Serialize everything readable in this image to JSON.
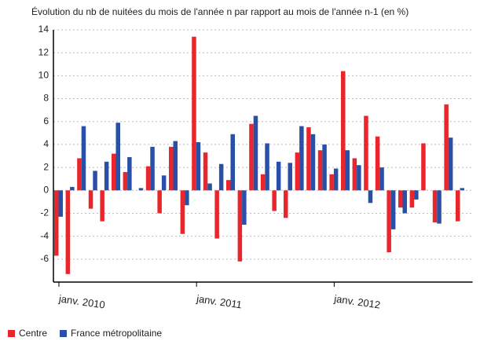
{
  "chart_data": {
    "type": "bar",
    "title": "Évolution du nb de nuitées du mois de l'année n par rapport au mois de l'année n-1 (en %)",
    "categories": [
      "janv. 2010",
      null,
      null,
      null,
      null,
      null,
      null,
      null,
      null,
      null,
      null,
      null,
      "janv. 2011",
      null,
      null,
      null,
      null,
      null,
      null,
      null,
      null,
      null,
      null,
      null,
      "janv. 2012",
      null,
      null,
      null,
      null,
      null,
      null,
      null,
      null,
      null,
      null,
      null
    ],
    "series": [
      {
        "name": "Centre",
        "color": "#e8262c",
        "values": [
          -5.7,
          -7.3,
          2.8,
          -1.6,
          -2.7,
          3.2,
          1.6,
          0,
          2.1,
          -2.0,
          3.8,
          -3.8,
          13.4,
          3.3,
          -4.2,
          0.9,
          -6.2,
          5.8,
          1.4,
          -1.8,
          -2.4,
          3.3,
          5.5,
          3.5,
          1.4,
          10.4,
          2.8,
          6.5,
          4.7,
          -5.4,
          -1.5,
          -1.5,
          4.1,
          -2.8,
          7.5,
          -2.7
        ]
      },
      {
        "name": "France métropolitaine",
        "color": "#2a4fa6",
        "values": [
          -2.3,
          0.3,
          5.6,
          1.7,
          2.5,
          5.9,
          2.9,
          0.2,
          3.8,
          1.3,
          4.3,
          -1.3,
          4.2,
          0.6,
          2.3,
          4.9,
          -3.0,
          6.5,
          4.1,
          2.5,
          2.4,
          5.6,
          4.9,
          4.0,
          1.9,
          3.5,
          2.2,
          -1.1,
          2.0,
          -3.4,
          -2.0,
          -0.8,
          0,
          -2.9,
          4.6,
          0.2
        ]
      }
    ],
    "ylim": [
      -8,
      14
    ],
    "yticks": [
      14,
      12,
      10,
      8,
      6,
      4,
      2,
      0,
      -2,
      -4,
      -6
    ],
    "grid": true,
    "legend": "bottom"
  }
}
